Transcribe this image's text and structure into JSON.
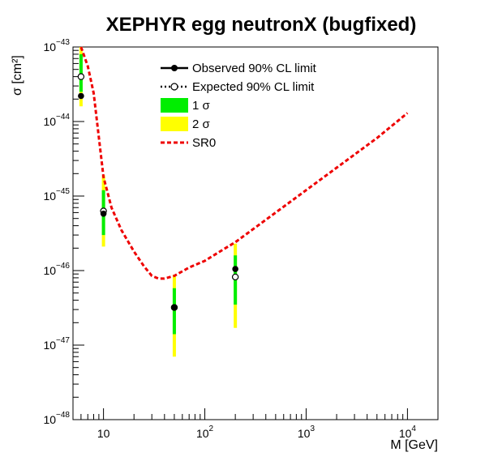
{
  "chart_data": {
    "type": "scatter",
    "title": "XEPHYR egg neutronX (bugfixed)",
    "xlabel": "M  [GeV]",
    "ylabel": "σ [cm²]",
    "x_scale": "log",
    "y_scale": "log",
    "xlim": [
      5,
      20000
    ],
    "ylim": [
      1e-48,
      1e-43
    ],
    "x_ticks": [
      {
        "value": 10,
        "base": "10",
        "exp": ""
      },
      {
        "value": 100,
        "base": "10",
        "exp": "2"
      },
      {
        "value": 1000,
        "base": "10",
        "exp": "3"
      },
      {
        "value": 10000,
        "base": "10",
        "exp": "4"
      }
    ],
    "y_ticks": [
      {
        "value": 1e-48,
        "base": "10",
        "exp": "−48"
      },
      {
        "value": 1e-47,
        "base": "10",
        "exp": "−47"
      },
      {
        "value": 1e-46,
        "base": "10",
        "exp": "−46"
      },
      {
        "value": 1e-45,
        "base": "10",
        "exp": "−45"
      },
      {
        "value": 1e-44,
        "base": "10",
        "exp": "−44"
      },
      {
        "value": 1e-43,
        "base": "10",
        "exp": "−43"
      }
    ],
    "grid": false,
    "legend_position": "top-center",
    "legend": [
      {
        "label": "Observed 90% CL limit",
        "kind": "observed"
      },
      {
        "label": "Expected 90% CL limit",
        "kind": "expected"
      },
      {
        "label": "1 σ",
        "kind": "band1"
      },
      {
        "label": "2 σ",
        "kind": "band2"
      },
      {
        "label": "SR0",
        "kind": "sr0"
      }
    ],
    "points": [
      {
        "mass": 6,
        "observed": 2.2e-44,
        "expected": 4e-44,
        "band1": [
          2.5e-44,
          8e-44
        ],
        "band2": [
          1.6e-44,
          1e-43
        ]
      },
      {
        "mass": 10,
        "observed": 5.8e-46,
        "expected": 6.3e-46,
        "band1": [
          3e-46,
          1.2e-45
        ],
        "band2": [
          2.1e-46,
          1.9e-45
        ]
      },
      {
        "mass": 50,
        "observed": 3.2e-47,
        "expected": 3.2e-47,
        "band1": [
          1.4e-47,
          5.8e-47
        ],
        "band2": [
          7e-48,
          8.8e-47
        ]
      },
      {
        "mass": 200,
        "observed": 1.05e-46,
        "expected": 8.2e-47,
        "band1": [
          3.5e-47,
          1.6e-46
        ],
        "band2": [
          1.7e-47,
          2.3e-46
        ]
      }
    ],
    "sr0_curve": {
      "x": [
        6,
        7,
        8,
        10,
        12,
        15,
        20,
        25,
        30,
        35,
        40,
        50,
        70,
        100,
        150,
        200,
        300,
        500,
        1000,
        2000,
        5000,
        10000
      ],
      "y": [
        1e-43,
        5.5e-44,
        2.4e-44,
        1.8e-45,
        7e-46,
        3.5e-46,
        1.8e-46,
        1.15e-46,
        8.5e-47,
        7.8e-47,
        7.8e-47,
        8.5e-47,
        1.1e-46,
        1.35e-46,
        1.9e-46,
        2.4e-46,
        3.6e-46,
        6e-46,
        1.2e-45,
        2.4e-45,
        6e-45,
        1.3e-44
      ]
    },
    "colors": {
      "band1": "#00ee00",
      "band2": "#ffff00",
      "sr0": "#ee0000",
      "marker": "#000000"
    }
  }
}
